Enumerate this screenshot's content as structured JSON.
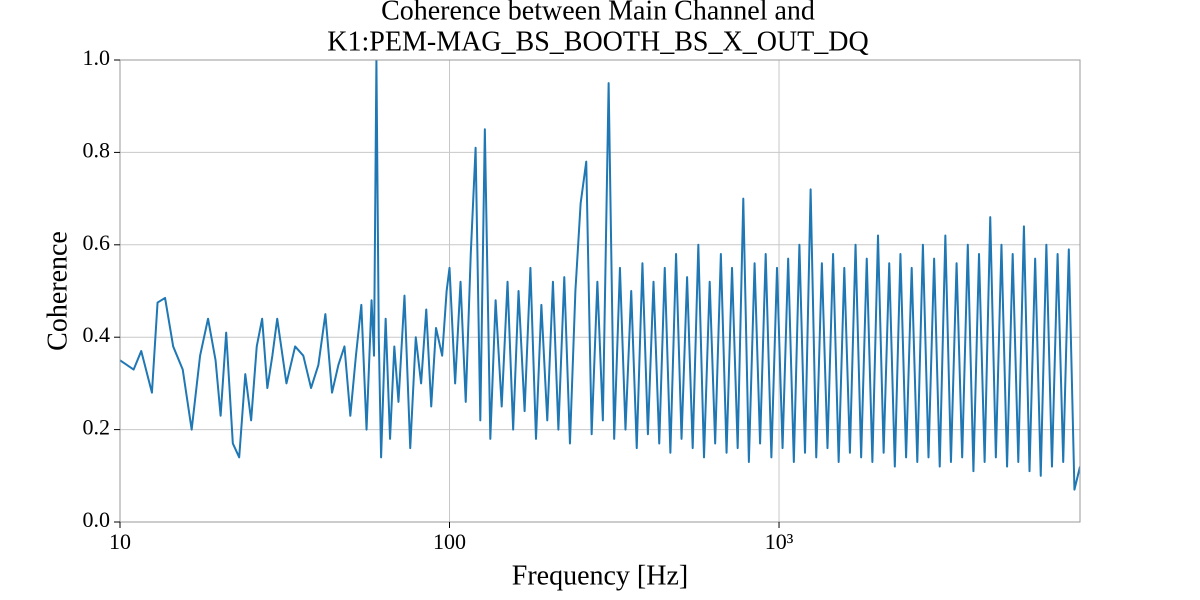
{
  "chart_data": {
    "type": "line",
    "title": [
      "Coherence between Main Channel and",
      "K1:PEM-MAG_BS_BOOTH_BS_X_OUT_DQ"
    ],
    "xlabel": "Frequency [Hz]",
    "ylabel": "Coherence",
    "xscale": "log",
    "grid": true,
    "color": "#1f77b4",
    "xlim": [
      10,
      8192
    ],
    "ylim": [
      0,
      1
    ],
    "xticks": [
      10,
      100,
      {
        "value": 1000,
        "label": "10³"
      }
    ],
    "yticks": [
      {
        "value": 0,
        "label": "0.0"
      },
      0.2,
      0.4,
      0.6,
      0.8,
      {
        "value": 1,
        "label": "1.0"
      }
    ],
    "x": [
      10,
      11,
      11.6,
      12.5,
      13,
      13.7,
      14.5,
      15.5,
      16.5,
      17.5,
      18.5,
      19.5,
      20.2,
      21,
      22,
      23,
      24,
      25,
      26,
      27,
      28,
      29,
      30,
      32,
      34,
      36,
      38,
      40,
      42,
      44,
      46,
      48,
      50,
      52,
      54,
      56,
      58,
      59,
      60,
      61,
      62,
      64,
      66,
      68,
      70,
      73,
      76,
      79,
      82,
      85,
      88,
      91,
      95,
      98,
      100,
      104,
      108,
      112,
      116,
      120,
      124,
      128,
      133,
      138,
      144,
      150,
      156,
      162,
      169,
      176,
      183,
      190,
      198,
      206,
      214,
      223,
      232,
      241,
      250,
      260,
      270,
      281,
      292,
      304,
      316,
      329,
      342,
      356,
      370,
      385,
      400,
      416,
      433,
      450,
      468,
      487,
      506,
      526,
      547,
      569,
      592,
      616,
      640,
      666,
      693,
      720,
      749,
      779,
      810,
      843,
      876,
      911,
      948,
      986,
      1025,
      1066,
      1109,
      1153,
      1199,
      1247,
      1297,
      1349,
      1403,
      1459,
      1517,
      1578,
      1641,
      1707,
      1775,
      1846,
      1920,
      1997,
      2077,
      2160,
      2246,
      2336,
      2430,
      2527,
      2628,
      2733,
      2842,
      2956,
      3074,
      3197,
      3325,
      3458,
      3596,
      3740,
      3890,
      4045,
      4207,
      4375,
      4550,
      4732,
      4921,
      5118,
      5323,
      5536,
      5757,
      5988,
      6227,
      6476,
      6735,
      7005,
      7285,
      7576,
      7879,
      8192
    ],
    "values": [
      0.35,
      0.33,
      0.37,
      0.28,
      0.475,
      0.485,
      0.38,
      0.33,
      0.2,
      0.36,
      0.44,
      0.35,
      0.23,
      0.41,
      0.17,
      0.14,
      0.32,
      0.22,
      0.38,
      0.44,
      0.29,
      0.36,
      0.44,
      0.3,
      0.38,
      0.36,
      0.29,
      0.34,
      0.45,
      0.28,
      0.34,
      0.38,
      0.23,
      0.36,
      0.47,
      0.2,
      0.48,
      0.36,
      1.0,
      0.4,
      0.14,
      0.44,
      0.18,
      0.38,
      0.26,
      0.49,
      0.16,
      0.4,
      0.3,
      0.46,
      0.25,
      0.42,
      0.36,
      0.5,
      0.55,
      0.3,
      0.52,
      0.26,
      0.58,
      0.81,
      0.22,
      0.85,
      0.18,
      0.48,
      0.25,
      0.52,
      0.2,
      0.5,
      0.24,
      0.55,
      0.18,
      0.47,
      0.22,
      0.52,
      0.2,
      0.53,
      0.17,
      0.5,
      0.69,
      0.78,
      0.19,
      0.52,
      0.22,
      0.95,
      0.18,
      0.55,
      0.2,
      0.5,
      0.16,
      0.56,
      0.19,
      0.52,
      0.17,
      0.55,
      0.15,
      0.58,
      0.18,
      0.53,
      0.16,
      0.6,
      0.14,
      0.52,
      0.17,
      0.58,
      0.15,
      0.55,
      0.16,
      0.7,
      0.13,
      0.56,
      0.17,
      0.58,
      0.14,
      0.55,
      0.16,
      0.57,
      0.13,
      0.6,
      0.15,
      0.72,
      0.14,
      0.56,
      0.16,
      0.58,
      0.13,
      0.55,
      0.15,
      0.6,
      0.14,
      0.57,
      0.13,
      0.62,
      0.15,
      0.56,
      0.12,
      0.58,
      0.14,
      0.55,
      0.13,
      0.6,
      0.14,
      0.57,
      0.12,
      0.62,
      0.13,
      0.56,
      0.14,
      0.6,
      0.11,
      0.58,
      0.13,
      0.66,
      0.14,
      0.6,
      0.12,
      0.58,
      0.13,
      0.64,
      0.11,
      0.57,
      0.1,
      0.6,
      0.12,
      0.58,
      0.13,
      0.59,
      0.07,
      0.12
    ]
  }
}
